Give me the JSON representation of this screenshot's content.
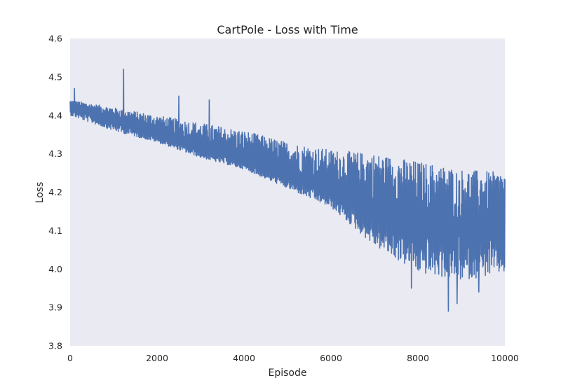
{
  "chart_data": {
    "type": "line",
    "title": "CartPole - Loss with Time",
    "xlabel": "Episode",
    "ylabel": "Loss",
    "xlim": [
      0,
      10000
    ],
    "ylim": [
      3.8,
      4.6
    ],
    "xticks": [
      0,
      2000,
      4000,
      6000,
      8000,
      10000
    ],
    "xtick_labels": [
      "0",
      "2000",
      "4000",
      "6000",
      "8000",
      "10000"
    ],
    "yticks": [
      3.8,
      3.9,
      4.0,
      4.1,
      4.2,
      4.3,
      4.4,
      4.5,
      4.6
    ],
    "ytick_labels": [
      "3.8",
      "3.9",
      "4.0",
      "4.1",
      "4.2",
      "4.3",
      "4.4",
      "4.5",
      "4.6"
    ],
    "grid": false,
    "background_color": "#EAEAF2",
    "series": [
      {
        "color": "#4C72B0",
        "trend": {
          "x": [
            0,
            1000,
            2000,
            3000,
            4000,
            5000,
            6000,
            7000,
            8000,
            9000,
            10000
          ],
          "y": [
            4.42,
            4.39,
            4.35,
            4.31,
            4.28,
            4.24,
            4.2,
            4.16,
            4.12,
            4.1,
            4.11
          ]
        },
        "band": {
          "x": [
            0,
            1000,
            2000,
            3000,
            4000,
            5000,
            6000,
            7000,
            8000,
            9000,
            10000
          ],
          "upper": [
            4.44,
            4.42,
            4.4,
            4.38,
            4.36,
            4.33,
            4.31,
            4.3,
            4.28,
            4.26,
            4.25
          ],
          "lower": [
            4.4,
            4.36,
            4.33,
            4.29,
            4.26,
            4.21,
            4.16,
            4.06,
            3.99,
            3.97,
            3.99
          ]
        },
        "spikes": [
          {
            "x": 100,
            "y": 4.47
          },
          {
            "x": 1230,
            "y": 4.52
          },
          {
            "x": 2500,
            "y": 4.45
          },
          {
            "x": 3200,
            "y": 4.44
          },
          {
            "x": 7850,
            "y": 3.95
          },
          {
            "x": 8700,
            "y": 3.89
          },
          {
            "x": 8900,
            "y": 3.91
          },
          {
            "x": 9400,
            "y": 3.94
          },
          {
            "x": 9900,
            "y": 4.24
          }
        ]
      }
    ]
  }
}
